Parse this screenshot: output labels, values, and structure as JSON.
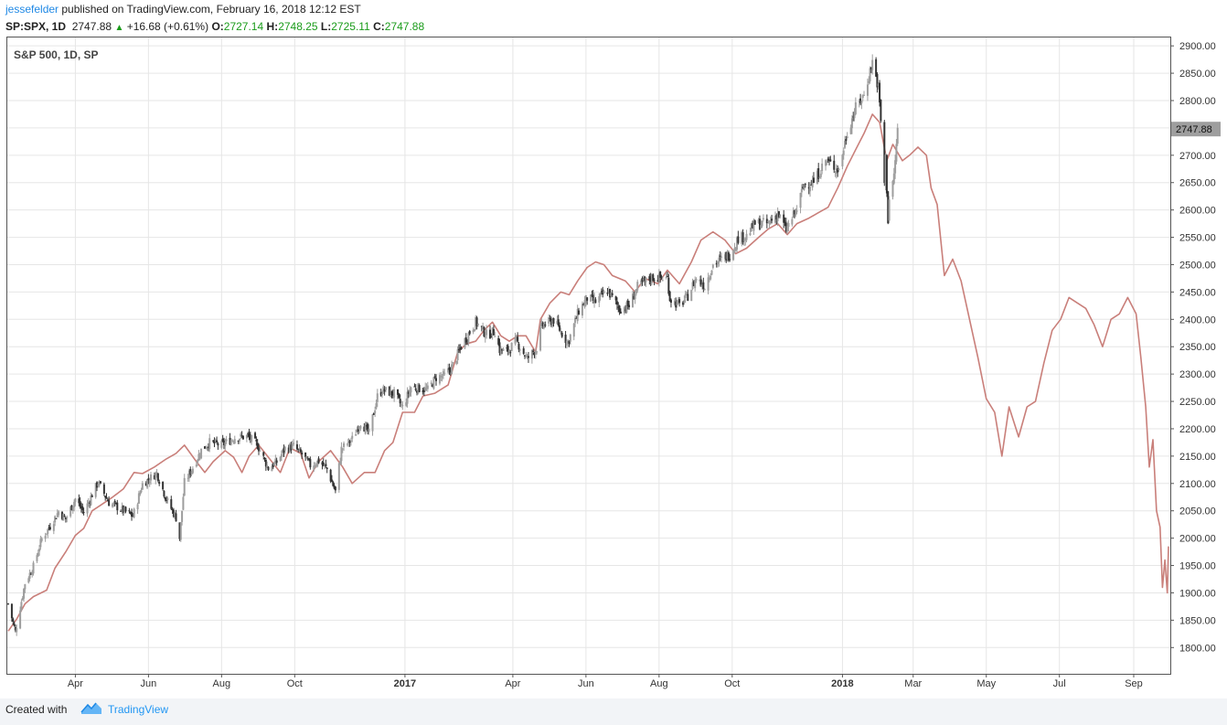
{
  "header": {
    "author": "jessefelder",
    "published_text": "published on TradingView.com, February 16, 2018 12:12 EST",
    "symbol": "SP:SPX, 1D",
    "last": "2747.88",
    "change": "+16.68 (+0.61%)",
    "o_label": "O:",
    "o": "2727.14",
    "h_label": "H:",
    "h": "2748.25",
    "l_label": "L:",
    "l": "2725.11",
    "c_label": "C:",
    "c": "2747.88"
  },
  "footer": {
    "created_with": "Created with",
    "brand": "TradingView"
  },
  "colors": {
    "candle_up": "#9e9e9e",
    "candle_down": "#333333",
    "analog_line": "#c97f7a",
    "grid": "#e6e6e6",
    "change_green": "#1a9b1a",
    "brand_blue": "#2196f3"
  },
  "chart_data": {
    "type": "candlestick+line",
    "title": "S&P 500, 1D, SP",
    "price_axis": {
      "ylim": [
        1752,
        2917
      ],
      "ticks": [
        1800,
        1850,
        1900,
        1950,
        2000,
        2050,
        2100,
        2150,
        2200,
        2250,
        2300,
        2350,
        2400,
        2450,
        2500,
        2550,
        2600,
        2650,
        2700,
        2750,
        2800,
        2850,
        2900
      ],
      "last_price_label": "2747.88"
    },
    "time_axis": {
      "range": [
        "2016-02-05",
        "2018-09-30"
      ],
      "ticks": [
        {
          "date": "2016-04-01",
          "label": "Apr",
          "bold": false
        },
        {
          "date": "2016-06-01",
          "label": "Jun",
          "bold": false
        },
        {
          "date": "2016-08-01",
          "label": "Aug",
          "bold": false
        },
        {
          "date": "2016-10-01",
          "label": "Oct",
          "bold": false
        },
        {
          "date": "2017-01-01",
          "label": "2017",
          "bold": true
        },
        {
          "date": "2017-04-01",
          "label": "Apr",
          "bold": false
        },
        {
          "date": "2017-06-01",
          "label": "Jun",
          "bold": false
        },
        {
          "date": "2017-08-01",
          "label": "Aug",
          "bold": false
        },
        {
          "date": "2017-10-01",
          "label": "Oct",
          "bold": false
        },
        {
          "date": "2018-01-01",
          "label": "2018",
          "bold": true
        },
        {
          "date": "2018-03-01",
          "label": "Mar",
          "bold": false
        },
        {
          "date": "2018-05-01",
          "label": "May",
          "bold": false
        },
        {
          "date": "2018-07-01",
          "label": "Jul",
          "bold": false
        },
        {
          "date": "2018-09-01",
          "label": "Sep",
          "bold": false
        }
      ]
    },
    "grid": true,
    "series": [
      {
        "kind": "candles",
        "range": [
          "2016-02-05",
          "2018-02-16"
        ],
        "close_path": [
          [
            "2016-02-05",
            1880
          ],
          [
            "2016-02-11",
            1829
          ],
          [
            "2016-02-19",
            1918
          ],
          [
            "2016-02-26",
            1948
          ],
          [
            "2016-03-04",
            1999
          ],
          [
            "2016-03-11",
            2022
          ],
          [
            "2016-03-18",
            2049
          ],
          [
            "2016-03-24",
            2035
          ],
          [
            "2016-04-01",
            2072
          ],
          [
            "2016-04-08",
            2047
          ],
          [
            "2016-04-15",
            2080
          ],
          [
            "2016-04-20",
            2102
          ],
          [
            "2016-04-29",
            2065
          ],
          [
            "2016-05-06",
            2057
          ],
          [
            "2016-05-19",
            2040
          ],
          [
            "2016-05-27",
            2099
          ],
          [
            "2016-06-08",
            2119
          ],
          [
            "2016-06-16",
            2071
          ],
          [
            "2016-06-24",
            2037
          ],
          [
            "2016-06-27",
            2000
          ],
          [
            "2016-07-01",
            2102
          ],
          [
            "2016-07-08",
            2129
          ],
          [
            "2016-07-15",
            2161
          ],
          [
            "2016-07-22",
            2175
          ],
          [
            "2016-08-01",
            2170
          ],
          [
            "2016-08-12",
            2184
          ],
          [
            "2016-08-23",
            2186
          ],
          [
            "2016-08-31",
            2170
          ],
          [
            "2016-09-09",
            2128
          ],
          [
            "2016-09-16",
            2139
          ],
          [
            "2016-09-23",
            2164
          ],
          [
            "2016-09-30",
            2168
          ],
          [
            "2016-10-07",
            2153
          ],
          [
            "2016-10-14",
            2133
          ],
          [
            "2016-10-21",
            2141
          ],
          [
            "2016-10-28",
            2126
          ],
          [
            "2016-11-04",
            2085
          ],
          [
            "2016-11-09",
            2163
          ],
          [
            "2016-11-18",
            2181
          ],
          [
            "2016-11-25",
            2213
          ],
          [
            "2016-12-02",
            2191
          ],
          [
            "2016-12-09",
            2259
          ],
          [
            "2016-12-13",
            2271
          ],
          [
            "2016-12-23",
            2264
          ],
          [
            "2016-12-30",
            2239
          ],
          [
            "2017-01-06",
            2276
          ],
          [
            "2017-01-13",
            2274
          ],
          [
            "2017-01-20",
            2271
          ],
          [
            "2017-01-27",
            2294
          ],
          [
            "2017-02-03",
            2297
          ],
          [
            "2017-02-10",
            2316
          ],
          [
            "2017-02-17",
            2351
          ],
          [
            "2017-03-01",
            2395
          ],
          [
            "2017-03-10",
            2372
          ],
          [
            "2017-03-17",
            2378
          ],
          [
            "2017-03-21",
            2344
          ],
          [
            "2017-03-27",
            2341
          ],
          [
            "2017-04-04",
            2360
          ],
          [
            "2017-04-13",
            2328
          ],
          [
            "2017-04-21",
            2348
          ],
          [
            "2017-04-25",
            2388
          ],
          [
            "2017-05-05",
            2399
          ],
          [
            "2017-05-17",
            2357
          ],
          [
            "2017-05-26",
            2416
          ],
          [
            "2017-06-02",
            2439
          ],
          [
            "2017-06-09",
            2432
          ],
          [
            "2017-06-19",
            2453
          ],
          [
            "2017-06-29",
            2419
          ],
          [
            "2017-07-07",
            2425
          ],
          [
            "2017-07-14",
            2459
          ],
          [
            "2017-07-26",
            2477
          ],
          [
            "2017-08-08",
            2475
          ],
          [
            "2017-08-10",
            2438
          ],
          [
            "2017-08-18",
            2425
          ],
          [
            "2017-08-25",
            2443
          ],
          [
            "2017-09-01",
            2476
          ],
          [
            "2017-09-08",
            2461
          ],
          [
            "2017-09-15",
            2500
          ],
          [
            "2017-09-29",
            2519
          ],
          [
            "2017-10-06",
            2549
          ],
          [
            "2017-10-13",
            2553
          ],
          [
            "2017-10-20",
            2575
          ],
          [
            "2017-10-31",
            2575
          ],
          [
            "2017-11-08",
            2594
          ],
          [
            "2017-11-15",
            2564
          ],
          [
            "2017-11-24",
            2602
          ],
          [
            "2017-11-30",
            2647
          ],
          [
            "2017-12-08",
            2651
          ],
          [
            "2017-12-18",
            2690
          ],
          [
            "2017-12-29",
            2673
          ],
          [
            "2018-01-05",
            2743
          ],
          [
            "2018-01-12",
            2786
          ],
          [
            "2018-01-19",
            2810
          ],
          [
            "2018-01-26",
            2872
          ],
          [
            "2018-01-31",
            2823
          ],
          [
            "2018-02-02",
            2762
          ],
          [
            "2018-02-05",
            2649
          ],
          [
            "2018-02-06",
            2695
          ],
          [
            "2018-02-08",
            2581
          ],
          [
            "2018-02-09",
            2619
          ],
          [
            "2018-02-13",
            2662
          ],
          [
            "2018-02-16",
            2748
          ]
        ]
      },
      {
        "kind": "line",
        "range": [
          "2016-02-05",
          "2018-09-30"
        ],
        "points": [
          [
            "2016-02-05",
            1830
          ],
          [
            "2016-02-12",
            1852
          ],
          [
            "2016-02-19",
            1880
          ],
          [
            "2016-02-26",
            1893
          ],
          [
            "2016-03-08",
            1905
          ],
          [
            "2016-03-15",
            1945
          ],
          [
            "2016-03-24",
            1975
          ],
          [
            "2016-04-01",
            2005
          ],
          [
            "2016-04-08",
            2018
          ],
          [
            "2016-04-15",
            2050
          ],
          [
            "2016-04-22",
            2060
          ],
          [
            "2016-05-02",
            2075
          ],
          [
            "2016-05-11",
            2090
          ],
          [
            "2016-05-20",
            2120
          ],
          [
            "2016-05-27",
            2118
          ],
          [
            "2016-06-06",
            2130
          ],
          [
            "2016-06-16",
            2145
          ],
          [
            "2016-06-24",
            2155
          ],
          [
            "2016-07-01",
            2170
          ],
          [
            "2016-07-11",
            2140
          ],
          [
            "2016-07-18",
            2120
          ],
          [
            "2016-07-25",
            2140
          ],
          [
            "2016-08-04",
            2160
          ],
          [
            "2016-08-11",
            2148
          ],
          [
            "2016-08-18",
            2120
          ],
          [
            "2016-08-24",
            2150
          ],
          [
            "2016-09-01",
            2170
          ],
          [
            "2016-09-09",
            2148
          ],
          [
            "2016-09-19",
            2120
          ],
          [
            "2016-09-27",
            2165
          ],
          [
            "2016-10-06",
            2155
          ],
          [
            "2016-10-13",
            2110
          ],
          [
            "2016-10-21",
            2140
          ],
          [
            "2016-10-31",
            2160
          ],
          [
            "2016-11-10",
            2130
          ],
          [
            "2016-11-18",
            2100
          ],
          [
            "2016-11-28",
            2120
          ],
          [
            "2016-12-07",
            2120
          ],
          [
            "2016-12-15",
            2160
          ],
          [
            "2016-12-22",
            2175
          ],
          [
            "2016-12-30",
            2230
          ],
          [
            "2017-01-09",
            2230
          ],
          [
            "2017-01-16",
            2260
          ],
          [
            "2017-01-26",
            2265
          ],
          [
            "2017-02-06",
            2280
          ],
          [
            "2017-02-14",
            2340
          ],
          [
            "2017-02-21",
            2355
          ],
          [
            "2017-03-01",
            2360
          ],
          [
            "2017-03-08",
            2380
          ],
          [
            "2017-03-15",
            2395
          ],
          [
            "2017-03-22",
            2370
          ],
          [
            "2017-03-29",
            2360
          ],
          [
            "2017-04-05",
            2370
          ],
          [
            "2017-04-12",
            2370
          ],
          [
            "2017-04-20",
            2340
          ],
          [
            "2017-04-24",
            2400
          ],
          [
            "2017-05-02",
            2430
          ],
          [
            "2017-05-11",
            2450
          ],
          [
            "2017-05-18",
            2445
          ],
          [
            "2017-05-25",
            2470
          ],
          [
            "2017-06-02",
            2495
          ],
          [
            "2017-06-09",
            2505
          ],
          [
            "2017-06-16",
            2500
          ],
          [
            "2017-06-23",
            2480
          ],
          [
            "2017-07-04",
            2470
          ],
          [
            "2017-07-12",
            2450
          ],
          [
            "2017-07-20",
            2475
          ],
          [
            "2017-07-31",
            2465
          ],
          [
            "2017-08-08",
            2490
          ],
          [
            "2017-08-18",
            2465
          ],
          [
            "2017-08-28",
            2505
          ],
          [
            "2017-09-05",
            2545
          ],
          [
            "2017-09-15",
            2560
          ],
          [
            "2017-09-25",
            2545
          ],
          [
            "2017-10-04",
            2520
          ],
          [
            "2017-10-13",
            2530
          ],
          [
            "2017-10-23",
            2550
          ],
          [
            "2017-10-31",
            2565
          ],
          [
            "2017-11-08",
            2575
          ],
          [
            "2017-11-16",
            2555
          ],
          [
            "2017-11-24",
            2575
          ],
          [
            "2017-12-04",
            2585
          ],
          [
            "2017-12-12",
            2595
          ],
          [
            "2017-12-20",
            2605
          ],
          [
            "2017-12-28",
            2640
          ],
          [
            "2018-01-05",
            2680
          ],
          [
            "2018-01-12",
            2710
          ],
          [
            "2018-01-19",
            2740
          ],
          [
            "2018-01-26",
            2775
          ],
          [
            "2018-02-01",
            2760
          ],
          [
            "2018-02-07",
            2690
          ],
          [
            "2018-02-12",
            2720
          ],
          [
            "2018-02-20",
            2690
          ],
          [
            "2018-02-26",
            2700
          ],
          [
            "2018-03-05",
            2715
          ],
          [
            "2018-03-12",
            2700
          ],
          [
            "2018-03-16",
            2640
          ],
          [
            "2018-03-21",
            2610
          ],
          [
            "2018-03-27",
            2480
          ],
          [
            "2018-04-03",
            2510
          ],
          [
            "2018-04-10",
            2470
          ],
          [
            "2018-04-17",
            2400
          ],
          [
            "2018-04-24",
            2330
          ],
          [
            "2018-05-01",
            2255
          ],
          [
            "2018-05-08",
            2230
          ],
          [
            "2018-05-14",
            2150
          ],
          [
            "2018-05-20",
            2240
          ],
          [
            "2018-05-28",
            2185
          ],
          [
            "2018-06-04",
            2240
          ],
          [
            "2018-06-11",
            2250
          ],
          [
            "2018-06-18",
            2320
          ],
          [
            "2018-06-25",
            2380
          ],
          [
            "2018-07-02",
            2400
          ],
          [
            "2018-07-09",
            2440
          ],
          [
            "2018-07-16",
            2430
          ],
          [
            "2018-07-23",
            2420
          ],
          [
            "2018-07-30",
            2390
          ],
          [
            "2018-08-06",
            2350
          ],
          [
            "2018-08-13",
            2400
          ],
          [
            "2018-08-20",
            2410
          ],
          [
            "2018-08-27",
            2440
          ],
          [
            "2018-09-03",
            2410
          ],
          [
            "2018-09-07",
            2330
          ],
          [
            "2018-09-11",
            2240
          ],
          [
            "2018-09-14",
            2130
          ],
          [
            "2018-09-17",
            2180
          ],
          [
            "2018-09-20",
            2050
          ],
          [
            "2018-09-23",
            2020
          ],
          [
            "2018-09-25",
            1910
          ],
          [
            "2018-09-27",
            1960
          ],
          [
            "2018-09-29",
            1900
          ],
          [
            "2018-09-30",
            1985
          ]
        ]
      }
    ]
  }
}
